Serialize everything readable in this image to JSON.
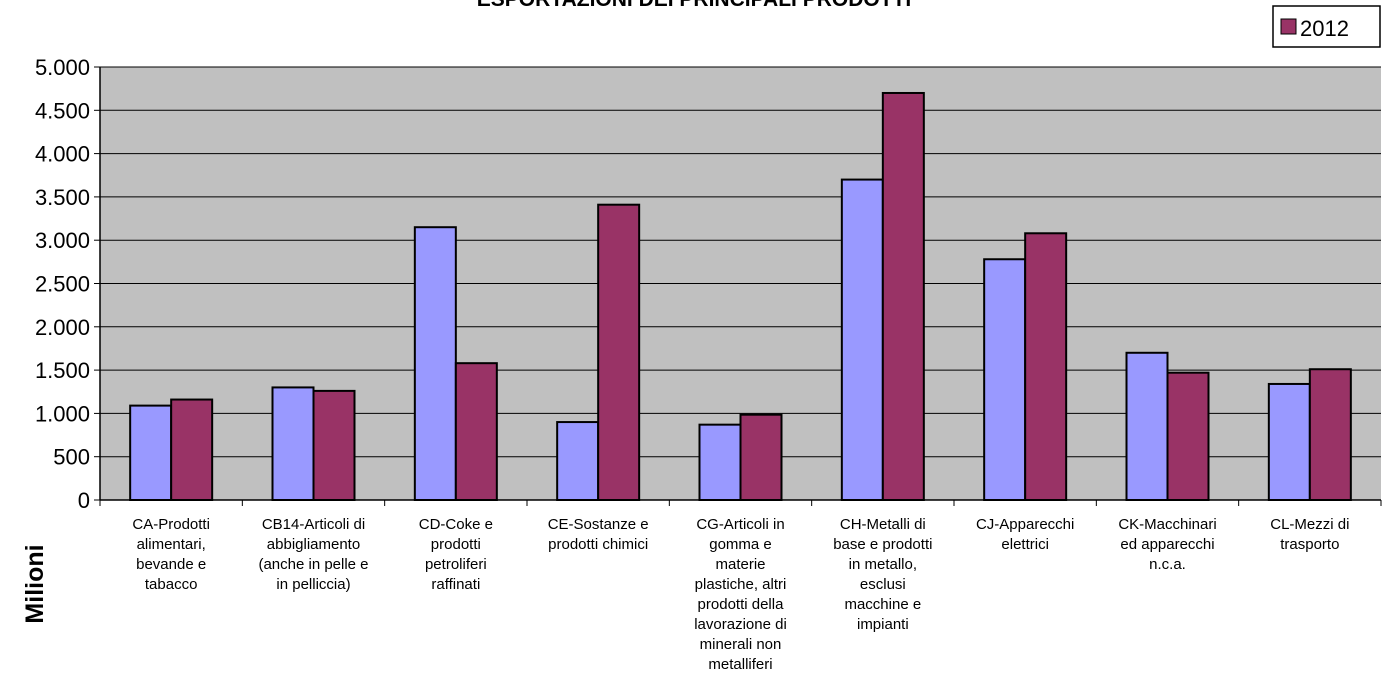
{
  "chart_data": {
    "type": "bar",
    "title": "ESPORTAZIONI DEI PRINCIPALI PRODOTTI",
    "ylabel": "Milioni",
    "xlabel": "",
    "ylim": [
      0,
      5000
    ],
    "yticks": [
      0,
      500,
      1000,
      1500,
      2000,
      2500,
      3000,
      3500,
      4000,
      4500,
      5000
    ],
    "ytick_labels": [
      "0",
      "500",
      "1.000",
      "1.500",
      "2.000",
      "2.500",
      "3.000",
      "3.500",
      "4.000",
      "4.500",
      "5.000"
    ],
    "grid": true,
    "legend_position": "top-right",
    "plot_background": "#c0c0c0",
    "categories": [
      "CA-Prodotti alimentari, bevande e tabacco",
      "CB14-Articoli di abbigliamento (anche in pelle e in pelliccia)",
      "CD-Coke e prodotti petroliferi raffinati",
      "CE-Sostanze e prodotti chimici",
      "CG-Articoli in gomma e materie plastiche, altri prodotti della lavorazione di minerali non metalliferi",
      "CH-Metalli di base e prodotti in metallo, esclusi macchine e impianti",
      "CJ-Apparecchi elettrici",
      "CK-Macchinari ed apparecchi n.c.a.",
      "CL-Mezzi di trasporto"
    ],
    "category_lines": [
      [
        "CA-Prodotti",
        "alimentari,",
        "bevande e",
        "tabacco"
      ],
      [
        "CB14-Articoli di",
        "abbigliamento",
        "(anche in pelle e",
        "in pelliccia)"
      ],
      [
        "CD-Coke e",
        "prodotti",
        "petroliferi",
        "raffinati"
      ],
      [
        "CE-Sostanze e",
        "prodotti chimici"
      ],
      [
        "CG-Articoli in",
        "gomma e",
        "materie",
        "plastiche, altri",
        "prodotti della",
        "lavorazione di",
        "minerali non",
        "metalliferi"
      ],
      [
        "CH-Metalli di",
        "base e prodotti",
        "in metallo,",
        "esclusi",
        "macchine e",
        "impianti"
      ],
      [
        "CJ-Apparecchi",
        "elettrici"
      ],
      [
        "CK-Macchinari",
        "ed apparecchi",
        "n.c.a."
      ],
      [
        "CL-Mezzi di",
        "trasporto"
      ]
    ],
    "series": [
      {
        "values": [
          1090,
          1300,
          3150,
          900,
          870,
          3700,
          2780,
          1700,
          1340
        ],
        "color": "#9999ff"
      },
      {
        "name": "2012",
        "values": [
          1160,
          1260,
          1580,
          3410,
          985,
          4700,
          3080,
          1470,
          1510
        ],
        "color": "#993366"
      }
    ]
  }
}
